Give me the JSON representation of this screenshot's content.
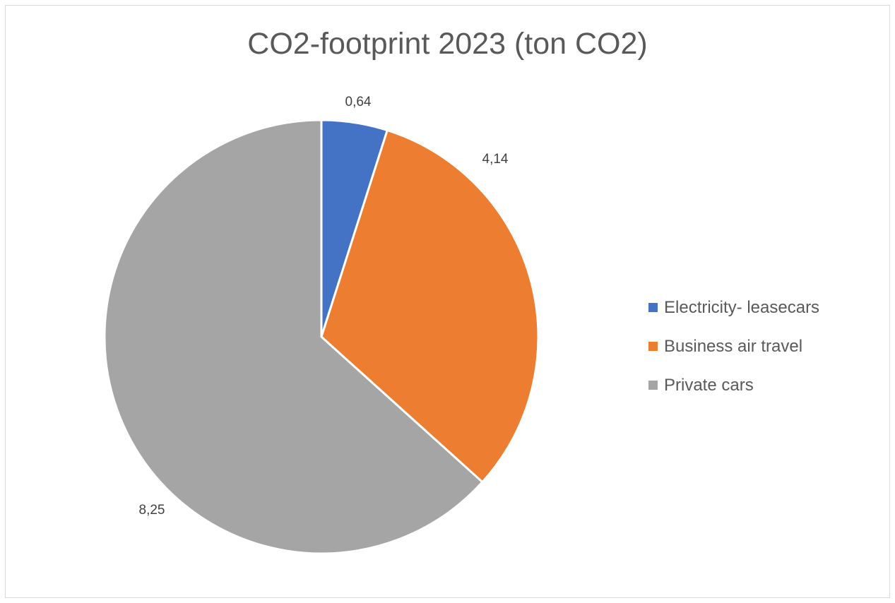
{
  "chart_data": {
    "type": "pie",
    "title": "CO2-footprint 2023 (ton CO2)",
    "categories": [
      "Electricity- leasecars",
      "Business air travel",
      "Private cars"
    ],
    "values": [
      0.64,
      4.14,
      8.25
    ],
    "data_labels": [
      "0,64",
      "4,14",
      "8,25"
    ],
    "colors": [
      "#4472C4",
      "#ED7D31",
      "#A5A5A5"
    ],
    "legend": "right"
  }
}
